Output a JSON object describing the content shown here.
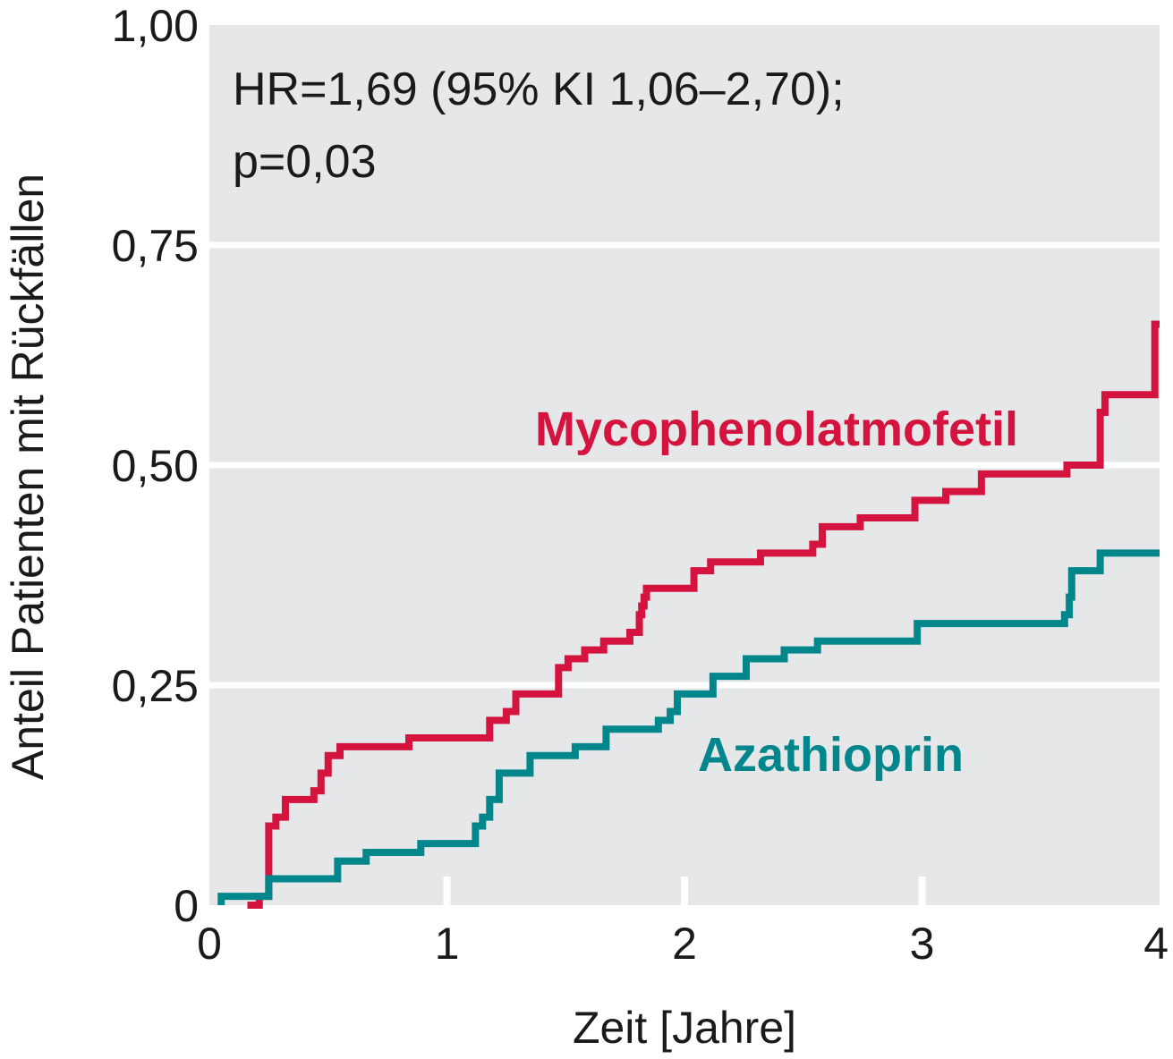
{
  "colors": {
    "panel": "#e6e7e9",
    "grid": "#ffffff",
    "mmf": "#d4143f",
    "aza": "#00868b",
    "text": "#1a1a1a"
  },
  "annotation": {
    "line1": "HR=1,69 (95% KI 1,06–2,70);",
    "line2": "p=0,03"
  },
  "chart_data": {
    "type": "line",
    "step": true,
    "xlabel": "Zeit [Jahre]",
    "ylabel": "Anteil Patienten mit Rückfällen",
    "xlim": [
      0,
      4
    ],
    "ylim": [
      0,
      1
    ],
    "xticks": [
      0,
      1,
      2,
      3,
      4
    ],
    "xtick_labels": [
      "0",
      "1",
      "2",
      "3",
      "4"
    ],
    "yticks": [
      0,
      0.25,
      0.5,
      0.75,
      1.0
    ],
    "ytick_labels": [
      "0",
      "0,25",
      "0,50",
      "0,75",
      "1,00"
    ],
    "grid": "horizontal",
    "series": [
      {
        "name": "Mycophenolatmofetil",
        "color": "#d4143f",
        "x": [
          0.16,
          0.21,
          0.25,
          0.28,
          0.32,
          0.44,
          0.47,
          0.5,
          0.55,
          0.84,
          1.18,
          1.25,
          1.29,
          1.47,
          1.51,
          1.58,
          1.66,
          1.77,
          1.81,
          1.82,
          1.83,
          1.84,
          2.04,
          2.11,
          2.32,
          2.54,
          2.58,
          2.74,
          2.97,
          3.1,
          3.25,
          3.61,
          3.75,
          3.77,
          3.98,
          4.0
        ],
        "y": [
          0.0,
          0.01,
          0.09,
          0.1,
          0.12,
          0.13,
          0.15,
          0.17,
          0.18,
          0.19,
          0.21,
          0.22,
          0.24,
          0.27,
          0.28,
          0.29,
          0.3,
          0.31,
          0.33,
          0.34,
          0.35,
          0.36,
          0.38,
          0.39,
          0.4,
          0.41,
          0.43,
          0.44,
          0.46,
          0.47,
          0.49,
          0.5,
          0.56,
          0.58,
          0.66,
          0.66
        ]
      },
      {
        "name": "Azathioprin",
        "color": "#00868b",
        "x": [
          0.05,
          0.25,
          0.54,
          0.66,
          0.89,
          1.12,
          1.15,
          1.18,
          1.22,
          1.35,
          1.54,
          1.67,
          1.89,
          1.94,
          1.97,
          2.12,
          2.26,
          2.42,
          2.56,
          2.98,
          3.6,
          3.62,
          3.63,
          3.75,
          4.0
        ],
        "y": [
          0.01,
          0.03,
          0.05,
          0.06,
          0.07,
          0.09,
          0.1,
          0.12,
          0.15,
          0.17,
          0.18,
          0.2,
          0.21,
          0.22,
          0.24,
          0.26,
          0.28,
          0.29,
          0.3,
          0.32,
          0.33,
          0.35,
          0.38,
          0.4,
          0.4
        ]
      }
    ]
  }
}
